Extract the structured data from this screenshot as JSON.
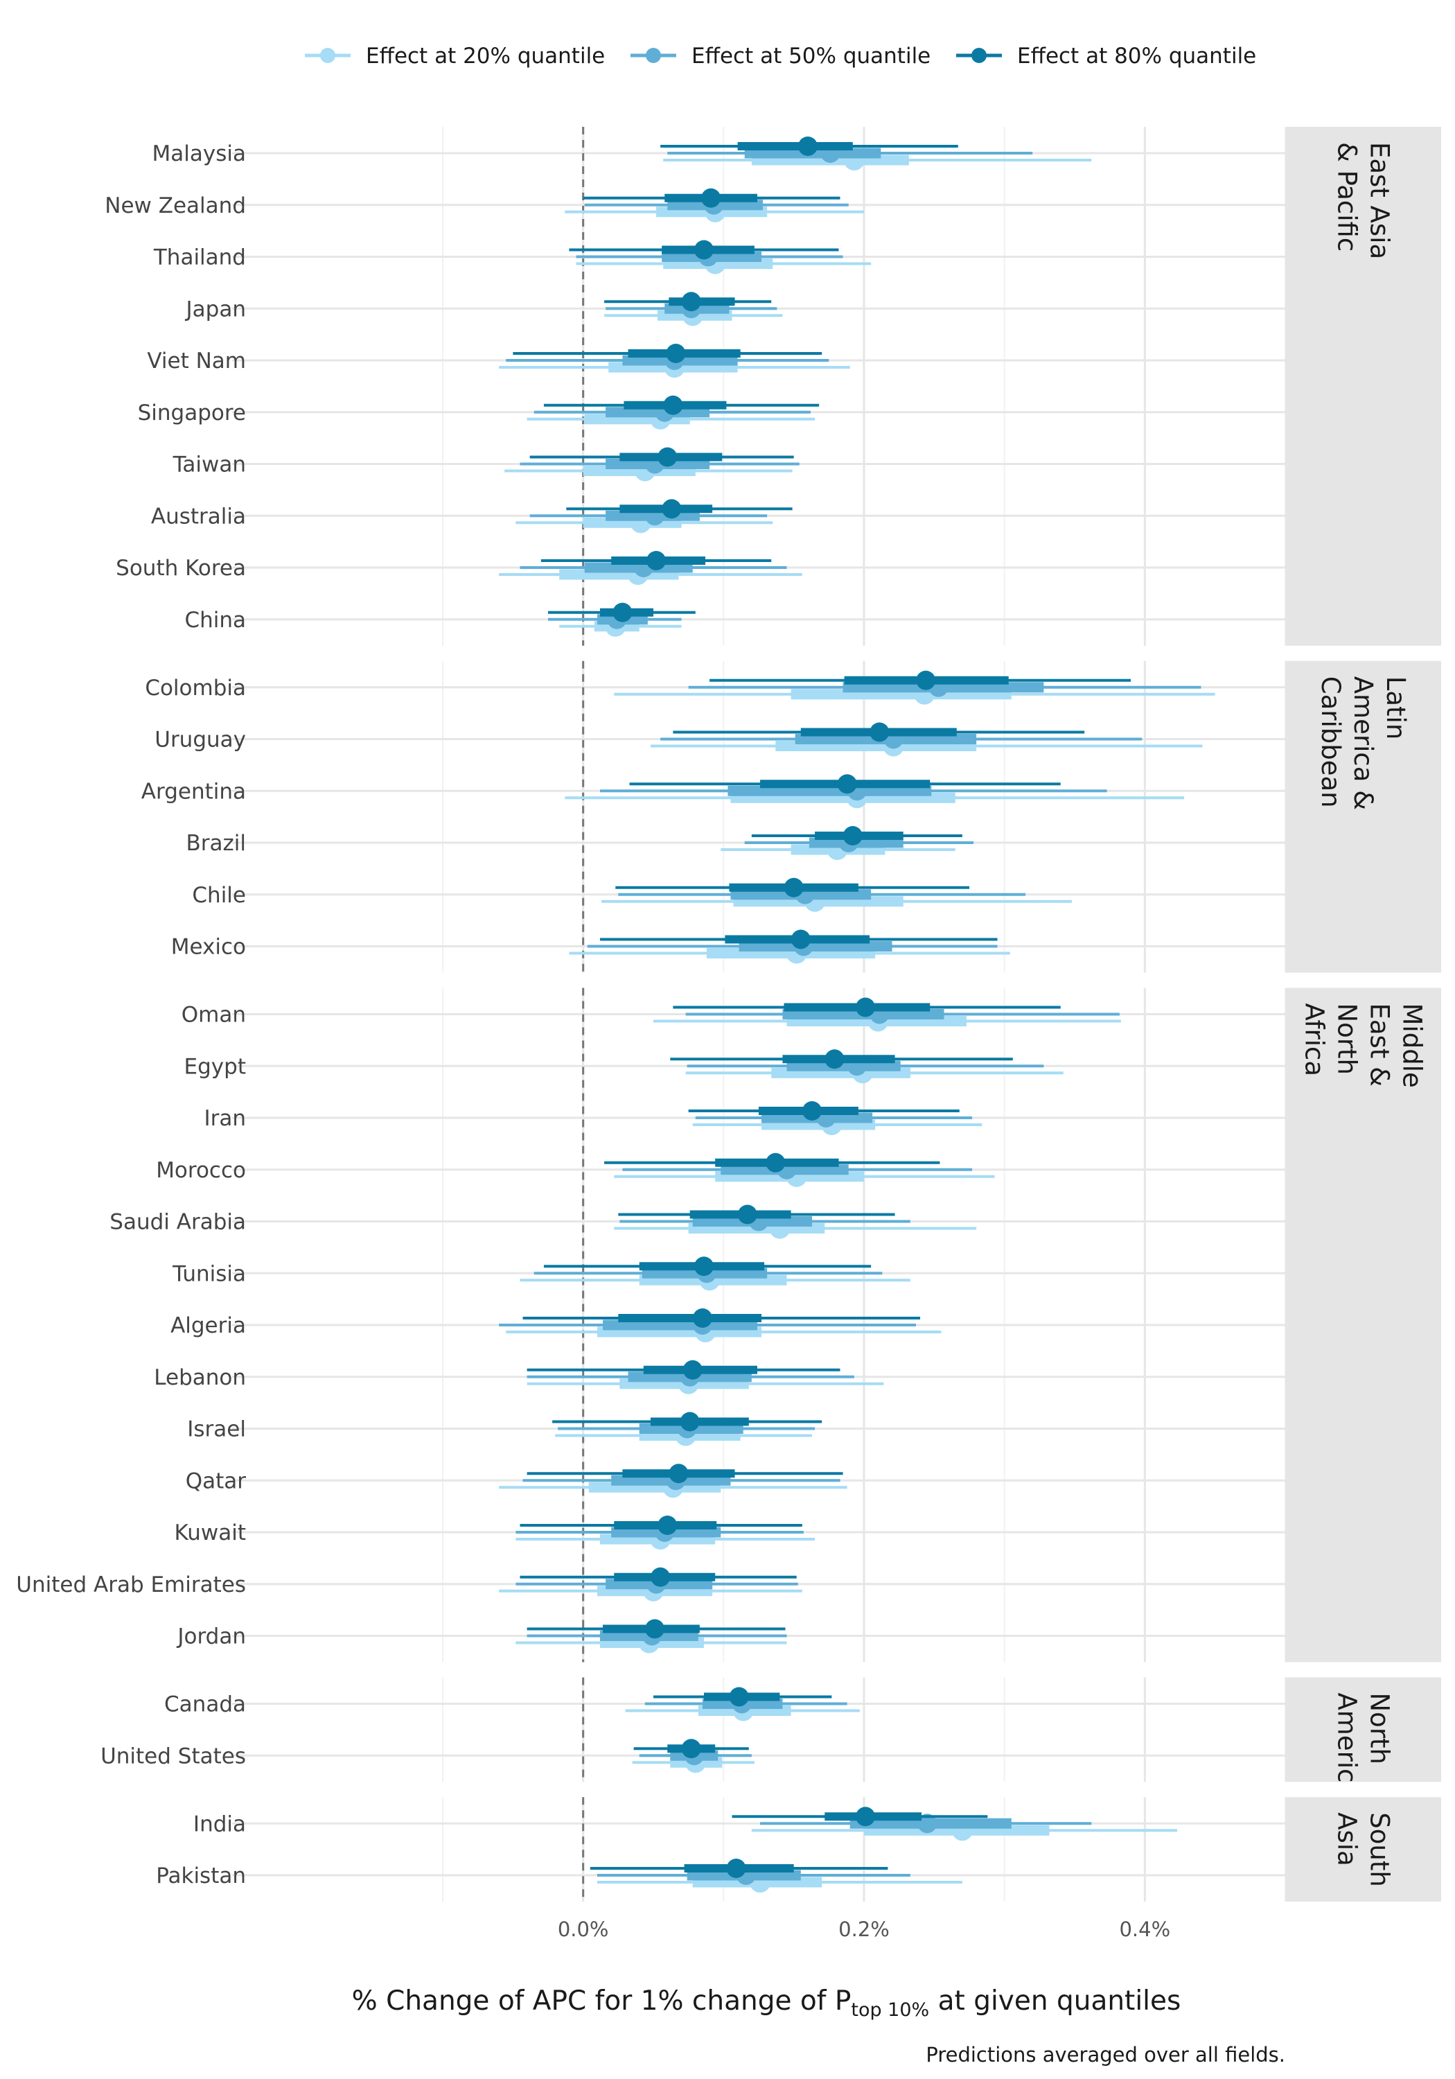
{
  "chart_data": {
    "type": "interval",
    "legend": {
      "position": "top",
      "entries": [
        {
          "name": "Effect at 20% quantile",
          "color": "#a6dcf5"
        },
        {
          "name": "Effect at 50% quantile",
          "color": "#5faed6"
        },
        {
          "name": "Effect at 80% quantile",
          "color": "#0a7aa3"
        }
      ]
    },
    "x_axis": {
      "title_main": "% Change of APC for 1% change of P",
      "title_sub": "top 10%",
      "title_tail": " at given quantiles",
      "range": [
        -0.25,
        0.5
      ],
      "ticks": [
        0.0,
        0.2,
        0.4
      ],
      "tick_labels": [
        "0.0%",
        "0.2%",
        "0.4%"
      ],
      "minor_ticks": [
        -0.1,
        0.1,
        0.3,
        0.5
      ],
      "reference_line": 0.0,
      "reference_line_style": "dashed"
    },
    "caption": "Predictions averaged over all fields.",
    "facets": [
      {
        "region": "East Asia & Pacific",
        "strip_lines": [
          "East Asia",
          "& Pacific"
        ],
        "countries": [
          {
            "name": "Malaysia",
            "q20": [
              0.193,
              0.12,
              0.232,
              0.057,
              0.362
            ],
            "q50": [
              0.176,
              0.115,
              0.212,
              0.06,
              0.32
            ],
            "q80": [
              0.16,
              0.11,
              0.192,
              0.055,
              0.267
            ]
          },
          {
            "name": "New Zealand",
            "q20": [
              0.094,
              0.052,
              0.131,
              -0.013,
              0.2
            ],
            "q50": [
              0.093,
              0.06,
              0.128,
              0.001,
              0.189
            ],
            "q80": [
              0.091,
              0.058,
              0.124,
              0.0,
              0.183
            ]
          },
          {
            "name": "Thailand",
            "q20": [
              0.094,
              0.057,
              0.135,
              -0.005,
              0.205
            ],
            "q50": [
              0.089,
              0.056,
              0.127,
              -0.005,
              0.185
            ],
            "q80": [
              0.086,
              0.056,
              0.122,
              -0.01,
              0.182
            ]
          },
          {
            "name": "Japan",
            "q20": [
              0.078,
              0.053,
              0.106,
              0.015,
              0.142
            ],
            "q50": [
              0.077,
              0.058,
              0.104,
              0.016,
              0.138
            ],
            "q80": [
              0.077,
              0.061,
              0.108,
              0.015,
              0.134
            ]
          },
          {
            "name": "Viet Nam",
            "q20": [
              0.065,
              0.018,
              0.11,
              -0.06,
              0.19
            ],
            "q50": [
              0.065,
              0.028,
              0.11,
              -0.055,
              0.175
            ],
            "q80": [
              0.066,
              0.032,
              0.112,
              -0.05,
              0.17
            ]
          },
          {
            "name": "Singapore",
            "q20": [
              0.055,
              0.001,
              0.076,
              -0.04,
              0.165
            ],
            "q50": [
              0.058,
              0.016,
              0.09,
              -0.035,
              0.162
            ],
            "q80": [
              0.064,
              0.029,
              0.102,
              -0.028,
              0.168
            ]
          },
          {
            "name": "Taiwan",
            "q20": [
              0.044,
              0.0,
              0.08,
              -0.056,
              0.149
            ],
            "q50": [
              0.051,
              0.016,
              0.09,
              -0.045,
              0.154
            ],
            "q80": [
              0.06,
              0.026,
              0.099,
              -0.038,
              0.15
            ]
          },
          {
            "name": "Australia",
            "q20": [
              0.041,
              0.0,
              0.07,
              -0.048,
              0.135
            ],
            "q50": [
              0.051,
              0.016,
              0.083,
              -0.038,
              0.131
            ],
            "q80": [
              0.063,
              0.026,
              0.092,
              -0.012,
              0.149
            ]
          },
          {
            "name": "South Korea",
            "q20": [
              0.039,
              -0.017,
              0.068,
              -0.06,
              0.156
            ],
            "q50": [
              0.043,
              0.001,
              0.078,
              -0.045,
              0.145
            ],
            "q80": [
              0.052,
              0.02,
              0.087,
              -0.03,
              0.134
            ]
          },
          {
            "name": "China",
            "q20": [
              0.023,
              0.008,
              0.04,
              -0.017,
              0.07
            ],
            "q50": [
              0.024,
              0.01,
              0.046,
              -0.025,
              0.07
            ],
            "q80": [
              0.028,
              0.012,
              0.05,
              -0.025,
              0.08
            ]
          }
        ]
      },
      {
        "region": "Latin America & Caribbean",
        "strip_lines": [
          "Latin",
          "America &",
          "Caribbean"
        ],
        "countries": [
          {
            "name": "Colombia",
            "q20": [
              0.243,
              0.148,
              0.305,
              0.022,
              0.45
            ],
            "q50": [
              0.253,
              0.185,
              0.328,
              0.075,
              0.44
            ],
            "q80": [
              0.244,
              0.186,
              0.303,
              0.09,
              0.39
            ]
          },
          {
            "name": "Uruguay",
            "q20": [
              0.221,
              0.137,
              0.28,
              0.048,
              0.441
            ],
            "q50": [
              0.221,
              0.151,
              0.28,
              0.055,
              0.398
            ],
            "q80": [
              0.211,
              0.155,
              0.266,
              0.064,
              0.357
            ]
          },
          {
            "name": "Argentina",
            "q20": [
              0.195,
              0.105,
              0.265,
              -0.013,
              0.428
            ],
            "q50": [
              0.195,
              0.103,
              0.248,
              0.012,
              0.373
            ],
            "q80": [
              0.188,
              0.126,
              0.247,
              0.033,
              0.34
            ]
          },
          {
            "name": "Brazil",
            "q20": [
              0.181,
              0.148,
              0.215,
              0.098,
              0.265
            ],
            "q50": [
              0.189,
              0.161,
              0.228,
              0.115,
              0.278
            ],
            "q80": [
              0.192,
              0.165,
              0.228,
              0.12,
              0.27
            ]
          },
          {
            "name": "Chile",
            "q20": [
              0.165,
              0.107,
              0.228,
              0.013,
              0.348
            ],
            "q50": [
              0.158,
              0.105,
              0.205,
              0.025,
              0.315
            ],
            "q80": [
              0.15,
              0.104,
              0.196,
              0.023,
              0.275
            ]
          },
          {
            "name": "Mexico",
            "q20": [
              0.152,
              0.088,
              0.208,
              -0.01,
              0.304
            ],
            "q50": [
              0.157,
              0.111,
              0.22,
              0.003,
              0.295
            ],
            "q80": [
              0.155,
              0.101,
              0.204,
              0.012,
              0.295
            ]
          }
        ]
      },
      {
        "region": "Middle East & North Africa",
        "strip_lines": [
          "Middle",
          "East &",
          "North",
          "Africa"
        ],
        "countries": [
          {
            "name": "Oman",
            "q20": [
              0.21,
              0.145,
              0.273,
              0.05,
              0.383
            ],
            "q50": [
              0.211,
              0.142,
              0.257,
              0.073,
              0.382
            ],
            "q80": [
              0.201,
              0.143,
              0.247,
              0.064,
              0.34
            ]
          },
          {
            "name": "Egypt",
            "q20": [
              0.199,
              0.134,
              0.233,
              0.073,
              0.342
            ],
            "q50": [
              0.195,
              0.145,
              0.226,
              0.074,
              0.328
            ],
            "q80": [
              0.179,
              0.142,
              0.222,
              0.062,
              0.306
            ]
          },
          {
            "name": "Iran",
            "q20": [
              0.177,
              0.127,
              0.208,
              0.078,
              0.284
            ],
            "q50": [
              0.173,
              0.127,
              0.206,
              0.08,
              0.277
            ],
            "q80": [
              0.163,
              0.125,
              0.196,
              0.075,
              0.268
            ]
          },
          {
            "name": "Morocco",
            "q20": [
              0.152,
              0.094,
              0.2,
              0.022,
              0.293
            ],
            "q50": [
              0.145,
              0.098,
              0.189,
              0.028,
              0.277
            ],
            "q80": [
              0.137,
              0.094,
              0.182,
              0.015,
              0.254
            ]
          },
          {
            "name": "Saudi Arabia",
            "q20": [
              0.14,
              0.075,
              0.172,
              0.022,
              0.28
            ],
            "q50": [
              0.125,
              0.078,
              0.163,
              0.026,
              0.233
            ],
            "q80": [
              0.117,
              0.076,
              0.148,
              0.025,
              0.222
            ]
          },
          {
            "name": "Tunisia",
            "q20": [
              0.09,
              0.04,
              0.145,
              -0.045,
              0.233
            ],
            "q50": [
              0.088,
              0.042,
              0.131,
              -0.035,
              0.213
            ],
            "q80": [
              0.086,
              0.04,
              0.129,
              -0.028,
              0.205
            ]
          },
          {
            "name": "Algeria",
            "q20": [
              0.087,
              0.01,
              0.127,
              -0.055,
              0.255
            ],
            "q50": [
              0.085,
              0.014,
              0.124,
              -0.06,
              0.237
            ],
            "q80": [
              0.085,
              0.025,
              0.127,
              -0.043,
              0.24
            ]
          },
          {
            "name": "Lebanon",
            "q20": [
              0.075,
              0.026,
              0.118,
              -0.04,
              0.214
            ],
            "q50": [
              0.076,
              0.032,
              0.12,
              -0.04,
              0.193
            ],
            "q80": [
              0.078,
              0.043,
              0.124,
              -0.04,
              0.183
            ]
          },
          {
            "name": "Israel",
            "q20": [
              0.073,
              0.04,
              0.112,
              -0.02,
              0.163
            ],
            "q50": [
              0.074,
              0.04,
              0.114,
              -0.018,
              0.165
            ],
            "q80": [
              0.076,
              0.048,
              0.118,
              -0.022,
              0.17
            ]
          },
          {
            "name": "Qatar",
            "q20": [
              0.064,
              0.004,
              0.098,
              -0.06,
              0.188
            ],
            "q50": [
              0.066,
              0.02,
              0.105,
              -0.043,
              0.183
            ],
            "q80": [
              0.068,
              0.028,
              0.108,
              -0.04,
              0.185
            ]
          },
          {
            "name": "Kuwait",
            "q20": [
              0.055,
              0.012,
              0.094,
              -0.048,
              0.165
            ],
            "q50": [
              0.058,
              0.02,
              0.098,
              -0.048,
              0.157
            ],
            "q80": [
              0.06,
              0.022,
              0.095,
              -0.045,
              0.156
            ]
          },
          {
            "name": "United Arab Emirates",
            "q20": [
              0.05,
              0.01,
              0.092,
              -0.06,
              0.156
            ],
            "q50": [
              0.052,
              0.016,
              0.092,
              -0.048,
              0.153
            ],
            "q80": [
              0.055,
              0.022,
              0.094,
              -0.045,
              0.152
            ]
          },
          {
            "name": "Jordan",
            "q20": [
              0.047,
              0.012,
              0.086,
              -0.048,
              0.145
            ],
            "q50": [
              0.049,
              0.012,
              0.082,
              -0.04,
              0.145
            ],
            "q80": [
              0.051,
              0.014,
              0.083,
              -0.04,
              0.144
            ]
          }
        ]
      },
      {
        "region": "North America",
        "strip_lines": [
          "North",
          "America"
        ],
        "countries": [
          {
            "name": "Canada",
            "q20": [
              0.114,
              0.082,
              0.148,
              0.03,
              0.197
            ],
            "q50": [
              0.113,
              0.085,
              0.142,
              0.044,
              0.188
            ],
            "q80": [
              0.111,
              0.086,
              0.14,
              0.05,
              0.177
            ]
          },
          {
            "name": "United States",
            "q20": [
              0.08,
              0.062,
              0.099,
              0.035,
              0.122
            ],
            "q50": [
              0.079,
              0.062,
              0.096,
              0.04,
              0.12
            ],
            "q80": [
              0.077,
              0.06,
              0.094,
              0.036,
              0.118
            ]
          }
        ]
      },
      {
        "region": "South Asia",
        "strip_lines": [
          "South",
          "Asia"
        ],
        "countries": [
          {
            "name": "India",
            "q20": [
              0.27,
              0.2,
              0.332,
              0.12,
              0.423
            ],
            "q50": [
              0.245,
              0.19,
              0.305,
              0.126,
              0.362
            ],
            "q80": [
              0.201,
              0.172,
              0.241,
              0.106,
              0.288
            ]
          },
          {
            "name": "Pakistan",
            "q20": [
              0.126,
              0.078,
              0.17,
              0.01,
              0.27
            ],
            "q50": [
              0.116,
              0.074,
              0.155,
              0.01,
              0.233
            ],
            "q80": [
              0.109,
              0.072,
              0.15,
              0.005,
              0.217
            ]
          }
        ]
      }
    ]
  }
}
